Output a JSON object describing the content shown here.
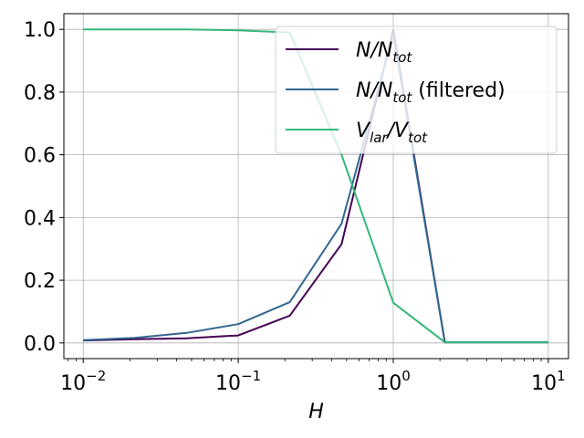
{
  "chart_data": {
    "type": "line",
    "xlabel": "H",
    "xscale": "log",
    "xlim": [
      0.0075,
      13.5
    ],
    "ylim": [
      -0.05,
      1.05
    ],
    "grid": true,
    "legend_position": "top-right",
    "x_ticks": [
      {
        "value": 0.01,
        "base": "10",
        "exp": "−2"
      },
      {
        "value": 0.1,
        "base": "10",
        "exp": "−1"
      },
      {
        "value": 1,
        "base": "10",
        "exp": "0"
      },
      {
        "value": 10,
        "base": "10",
        "exp": "1"
      }
    ],
    "y_ticks": [
      {
        "value": 0.0,
        "label": "0.0"
      },
      {
        "value": 0.2,
        "label": "0.2"
      },
      {
        "value": 0.4,
        "label": "0.4"
      },
      {
        "value": 0.6,
        "label": "0.6"
      },
      {
        "value": 0.8,
        "label": "0.8"
      },
      {
        "value": 1.0,
        "label": "1.0"
      }
    ],
    "series": [
      {
        "name": "N/N_tot",
        "legend": {
          "base": "N/N",
          "sub": "tot",
          "suffix": ""
        },
        "color": "#440154",
        "points": [
          [
            0.01,
            0.008
          ],
          [
            0.0215,
            0.012
          ],
          [
            0.0464,
            0.015
          ],
          [
            0.1,
            0.024
          ],
          [
            0.215,
            0.087
          ],
          [
            0.464,
            0.315
          ],
          [
            1.0,
            1.0
          ],
          [
            2.15,
            0.002
          ],
          [
            4.64,
            0.002
          ],
          [
            10.0,
            0.002
          ]
        ]
      },
      {
        "name": "N/N_tot (filtered)",
        "legend": {
          "base": "N/N",
          "sub": "tot",
          "suffix": " (filtered)"
        },
        "color": "#31688e",
        "points": [
          [
            0.01,
            0.009
          ],
          [
            0.0215,
            0.016
          ],
          [
            0.0464,
            0.032
          ],
          [
            0.1,
            0.06
          ],
          [
            0.215,
            0.13
          ],
          [
            0.464,
            0.38
          ],
          [
            1.0,
            0.985
          ],
          [
            2.15,
            0.002
          ],
          [
            4.64,
            0.002
          ],
          [
            10.0,
            0.002
          ]
        ]
      },
      {
        "name": "V_lar/V_tot",
        "legend": {
          "base": "V",
          "sub": "lar",
          "mid": "/V",
          "sub2": "tot",
          "suffix": ""
        },
        "color": "#35b779",
        "points": [
          [
            0.01,
            1.0
          ],
          [
            0.0215,
            1.0
          ],
          [
            0.0464,
            1.0
          ],
          [
            0.1,
            0.997
          ],
          [
            0.215,
            0.99
          ],
          [
            0.464,
            0.6
          ],
          [
            1.0,
            0.128
          ],
          [
            2.15,
            0.002
          ],
          [
            4.64,
            0.002
          ],
          [
            10.0,
            0.002
          ]
        ]
      }
    ]
  }
}
